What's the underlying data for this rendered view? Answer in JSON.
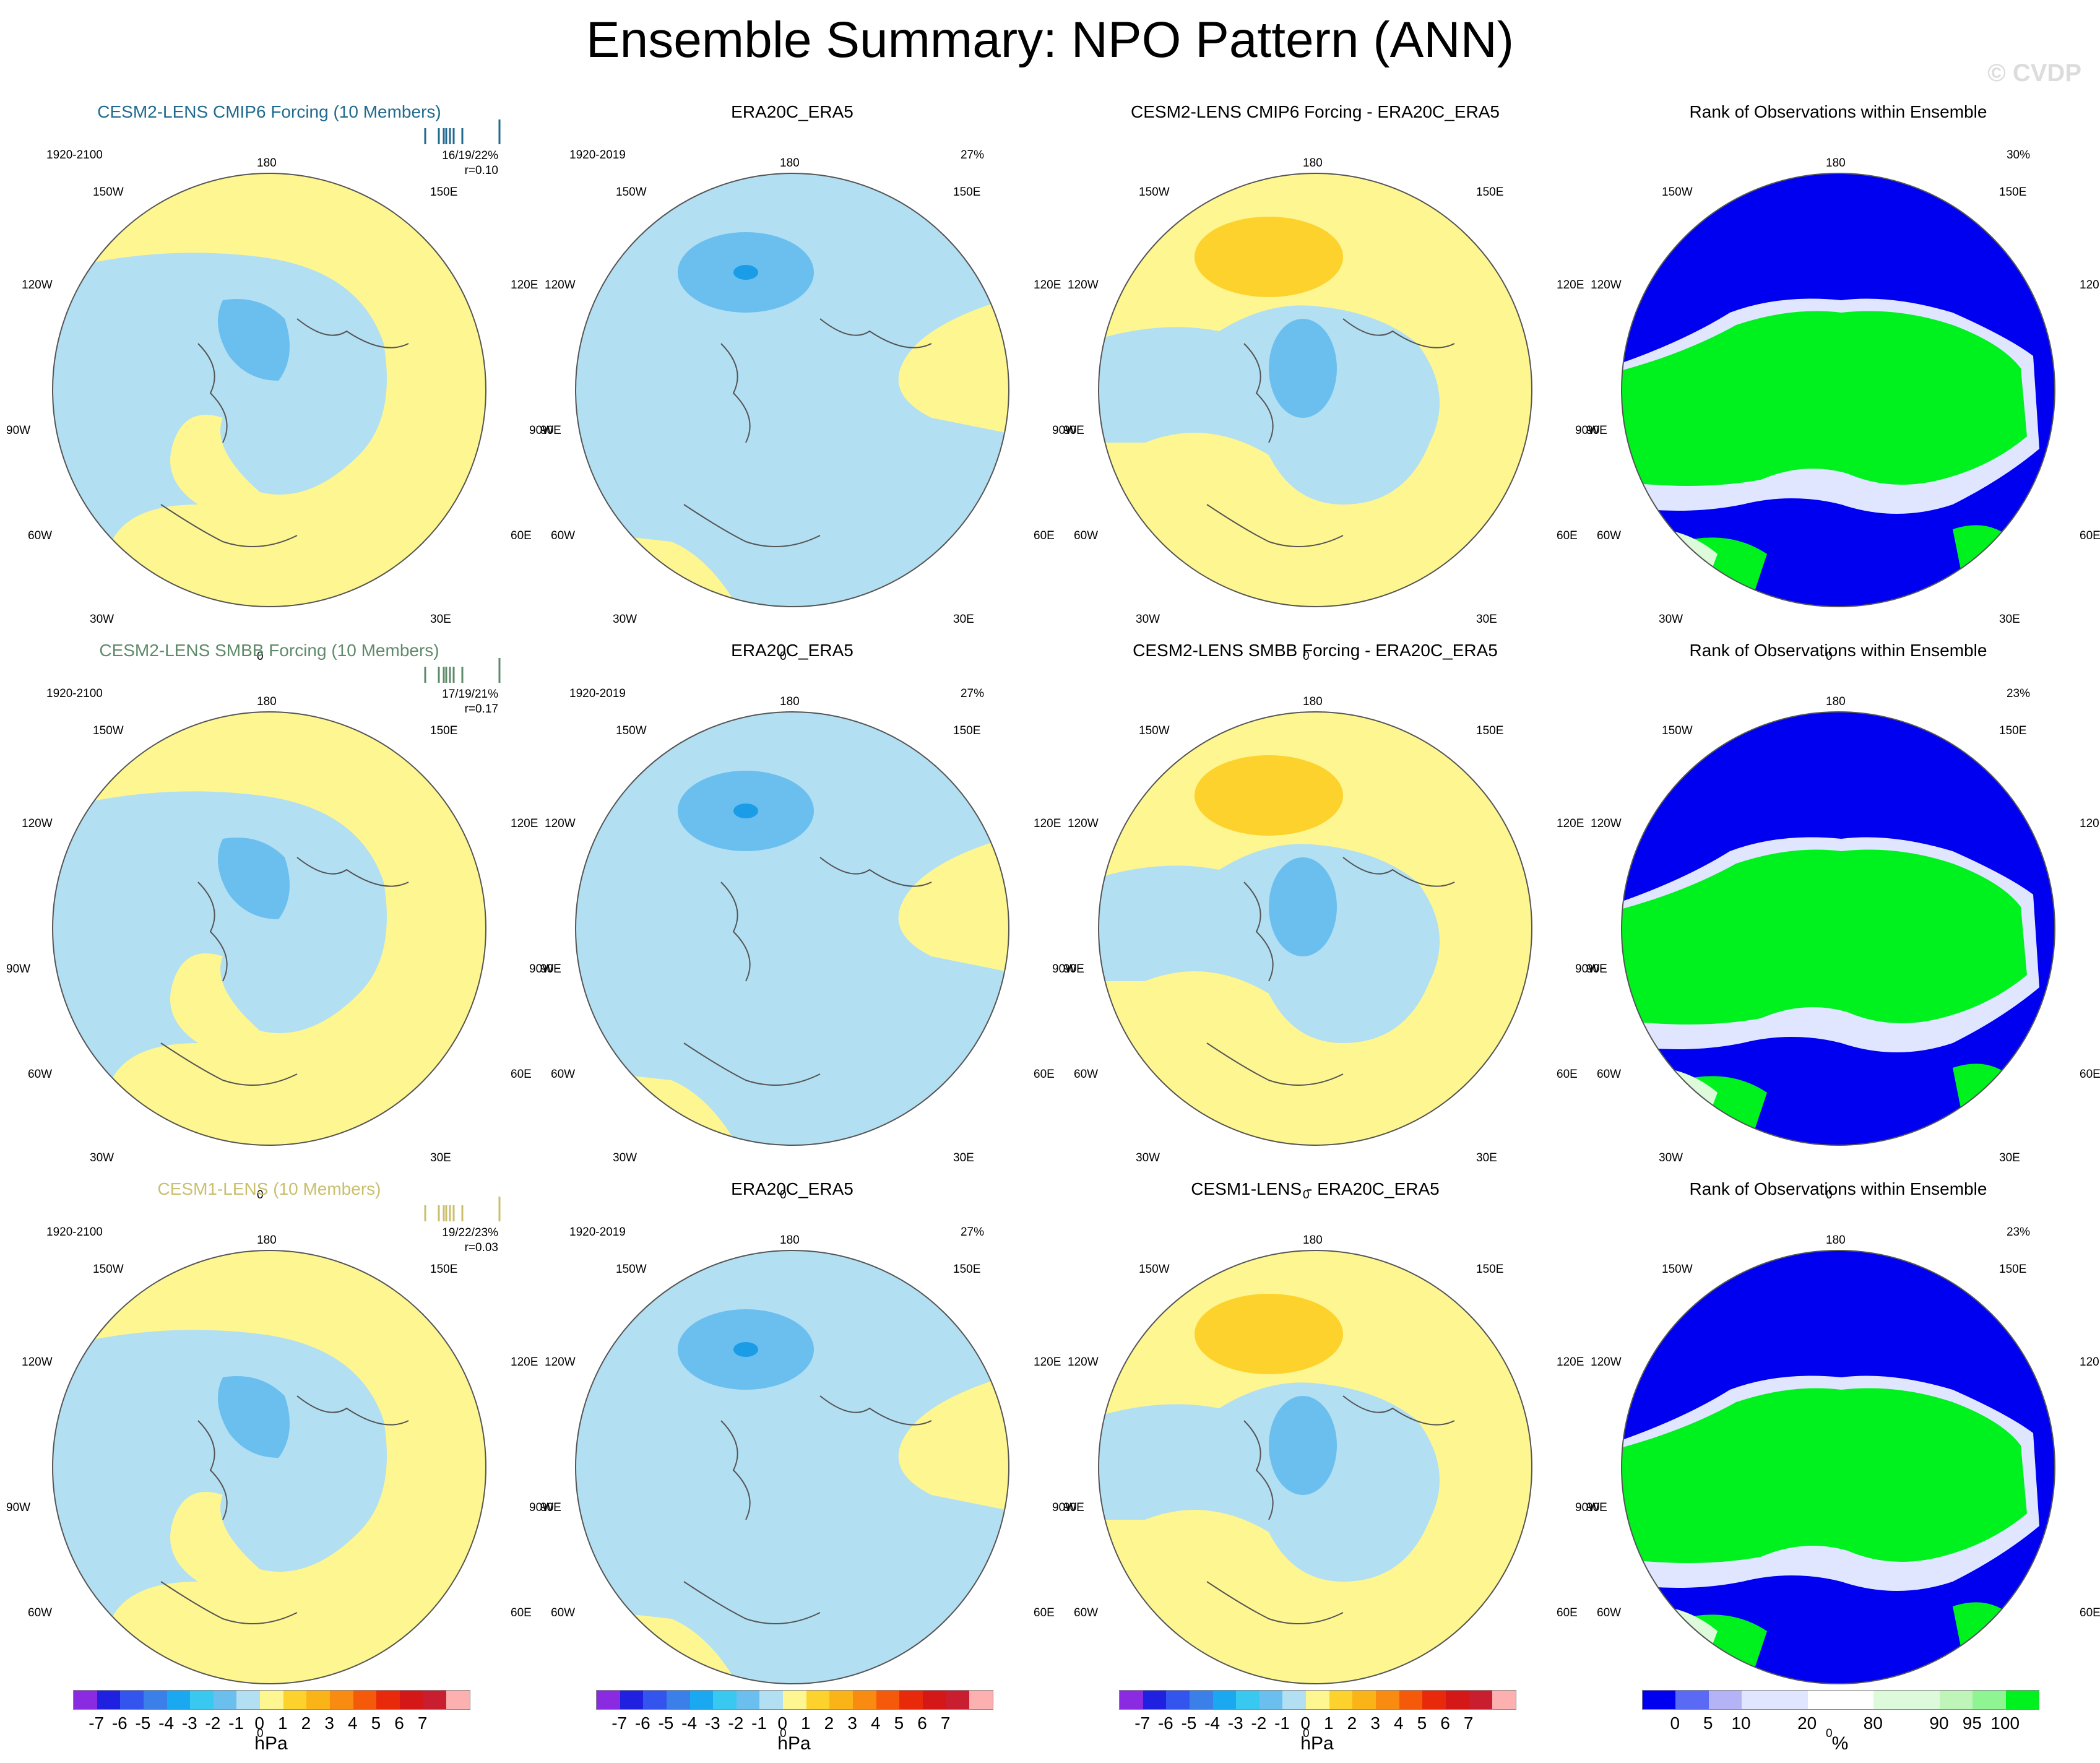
{
  "header": {
    "title": "Ensemble Summary: NPO Pattern (ANN)",
    "watermark": "© CVDP"
  },
  "lon_labels": [
    "180",
    "150E",
    "120E",
    "90E",
    "60E",
    "30E",
    "0",
    "30W",
    "60W",
    "90W",
    "120W",
    "150W"
  ],
  "colors": {
    "yellow": "#fef691",
    "lightblue": "#b2dff2",
    "midblue": "#6bbfef",
    "darkblue": "#1a9de6",
    "orange": "#fdd22c",
    "darkorange": "#fab418",
    "white": "#ffffff",
    "rank_blue": "#0000f0",
    "rank_green": "#00f21e",
    "rank_pale": "#e0e6ff",
    "rank_palegreen": "#ddfadb"
  },
  "rows": [
    {
      "model": {
        "title": "CESM2-LENS CMIP6 Forcing (10 Members)",
        "title_color": "#1f6a8e",
        "period": "1920-2100",
        "stats": "16/19/22%",
        "corr": "r=0.10"
      },
      "obs": {
        "title": "ERA20C_ERA5",
        "period": "1920-2019",
        "pct": "27%"
      },
      "diff": {
        "title": "CESM2-LENS CMIP6 Forcing - ERA20C_ERA5"
      },
      "rank": {
        "title": "Rank of Observations within Ensemble",
        "pct": "30%"
      }
    },
    {
      "model": {
        "title": "CESM2-LENS SMBB Forcing (10 Members)",
        "title_color": "#5f8a6a",
        "period": "1920-2100",
        "stats": "17/19/21%",
        "corr": "r=0.17"
      },
      "obs": {
        "title": "ERA20C_ERA5",
        "period": "1920-2019",
        "pct": "27%"
      },
      "diff": {
        "title": "CESM2-LENS SMBB Forcing - ERA20C_ERA5"
      },
      "rank": {
        "title": "Rank of Observations within Ensemble",
        "pct": "23%"
      }
    },
    {
      "model": {
        "title": "CESM1-LENS (10 Members)",
        "title_color": "#c9bf6c",
        "period": "1920-2100",
        "stats": "19/22/23%",
        "corr": "r=0.03"
      },
      "obs": {
        "title": "ERA20C_ERA5",
        "period": "1920-2019",
        "pct": "27%"
      },
      "diff": {
        "title": "CESM1-LENS - ERA20C_ERA5"
      },
      "rank": {
        "title": "Rank of Observations within Ensemble",
        "pct": "23%"
      }
    }
  ],
  "colorbar_hpa": {
    "colors": [
      "#8a2be2",
      "#2020e0",
      "#3355ee",
      "#3a80e8",
      "#1aa8f0",
      "#38c8f0",
      "#6bbfef",
      "#b2dff2",
      "#fef691",
      "#fdd22c",
      "#fab418",
      "#f98c10",
      "#f55a0a",
      "#e82a0a",
      "#d41818",
      "#c81e30",
      "#fdb0b0"
    ],
    "ticks": [
      "-7",
      "-6",
      "-5",
      "-4",
      "-3",
      "-2",
      "-1",
      "0",
      "1",
      "2",
      "3",
      "4",
      "5",
      "6",
      "7"
    ],
    "unit": "hPa"
  },
  "colorbar_rank": {
    "colors": [
      "#0000f0",
      "#5a6af5",
      "#b3b3f5",
      "#e0e6ff",
      "#e0e6ff",
      "#ffffff",
      "#ffffff",
      "#ddfadb",
      "#ddfadb",
      "#bff5b8",
      "#8ef592",
      "#00f21e"
    ],
    "ticks": [
      "0",
      "5",
      "10",
      "20",
      "80",
      "90",
      "95",
      "100"
    ],
    "unit": "%"
  }
}
